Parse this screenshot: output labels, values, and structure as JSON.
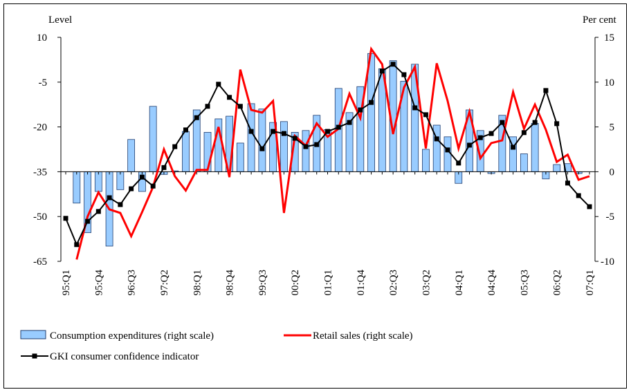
{
  "chart_data": {
    "type": "bar-line",
    "y_label": "Level",
    "y2_label": "Per cent",
    "categories": [
      "95:Q1",
      null,
      null,
      "95:Q4",
      null,
      null,
      "96:Q3",
      null,
      null,
      "97:Q2",
      null,
      null,
      "98:Q1",
      null,
      null,
      "98:Q4",
      null,
      null,
      "99:Q3",
      null,
      null,
      "00:Q2",
      null,
      null,
      "01:Q1",
      null,
      null,
      "01:Q4",
      null,
      null,
      "02:Q3",
      null,
      null,
      "03:Q2",
      null,
      null,
      "04:Q1",
      null,
      null,
      "04:Q4",
      null,
      null,
      "05:Q3",
      null,
      null,
      "06:Q2",
      null,
      null,
      "07:Q1"
    ],
    "ylim": [
      -65,
      10
    ],
    "yticks": [
      -65,
      -50,
      -35,
      -20,
      -5,
      10
    ],
    "y2lim": [
      -10,
      15
    ],
    "y2ticks": [
      -10,
      -5,
      0,
      5,
      10,
      15
    ],
    "series": [
      {
        "name": "Consumption expenditures (right scale)",
        "type": "bar",
        "axis": "y2",
        "color": "#99ccff",
        "values": [
          null,
          -3.5,
          -6.8,
          -2.2,
          -8.3,
          -2.0,
          3.6,
          -2.2,
          7.3,
          -0.3,
          0.1,
          4.5,
          6.9,
          4.4,
          5.9,
          6.2,
          3.2,
          7.6,
          7.0,
          5.5,
          5.6,
          4.4,
          4.6,
          6.3,
          4.7,
          9.3,
          6.6,
          9.5,
          13.2,
          11.5,
          12.4,
          10.1,
          12.0,
          2.5,
          5.2,
          3.9,
          -1.3,
          6.9,
          4.6,
          -0.2,
          6.3,
          3.9,
          2.0,
          5.4,
          -0.8,
          0.8,
          0.9,
          -0.2,
          null
        ]
      },
      {
        "name": "Retail sales (right scale)",
        "type": "line",
        "axis": "y2",
        "color": "#ff0000",
        "values": [
          null,
          -9.8,
          -5.0,
          -2.3,
          -4.2,
          -4.6,
          -7.2,
          -4.5,
          -1.7,
          2.5,
          -0.5,
          -2.1,
          0.2,
          0.2,
          5.0,
          -0.6,
          11.4,
          6.9,
          6.6,
          7.9,
          -4.6,
          4.0,
          2.9,
          5.4,
          3.9,
          4.8,
          8.7,
          6.0,
          13.7,
          12.0,
          4.2,
          9.4,
          11.7,
          2.6,
          12.1,
          7.9,
          2.6,
          6.7,
          1.5,
          3.2,
          3.5,
          8.9,
          4.8,
          7.5,
          4.7,
          1.1,
          1.9,
          -0.9,
          -0.5
        ]
      },
      {
        "name": "GKI consumer confidence indicator",
        "type": "line-marker",
        "color": "#000000",
        "values": [
          -50.6,
          -59.4,
          -51.6,
          -48.3,
          -43.7,
          -46.0,
          -40.7,
          -36.8,
          -39.8,
          -33.6,
          -26.6,
          -21.0,
          -16.9,
          -13.1,
          -5.7,
          -10.1,
          -13.1,
          -21.5,
          -27.3,
          -21.5,
          -22.2,
          -23.8,
          -26.6,
          -25.9,
          -21.5,
          -20.1,
          -18.5,
          -14.3,
          -11.8,
          -1.3,
          1.0,
          -2.5,
          -13.6,
          -15.9,
          -24.0,
          -27.7,
          -32.1,
          -26.1,
          -23.6,
          -22.2,
          -18.5,
          -26.8,
          -21.9,
          -18.5,
          -7.8,
          -18.9,
          -38.8,
          -43.0,
          -46.7
        ]
      }
    ]
  }
}
